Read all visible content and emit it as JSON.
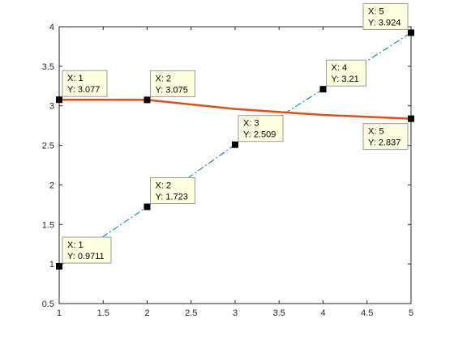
{
  "chart_data": {
    "type": "line",
    "title": "",
    "xlabel": "",
    "ylabel": "",
    "xlim": [
      1,
      5
    ],
    "ylim": [
      0.5,
      4
    ],
    "x_ticks": [
      1,
      1.5,
      2,
      2.5,
      3,
      3.5,
      4,
      4.5,
      5
    ],
    "y_ticks": [
      0.5,
      1,
      1.5,
      2,
      2.5,
      3,
      3.5,
      4
    ],
    "x_tick_labels": [
      "1",
      "1.5",
      "2",
      "2.5",
      "3",
      "3.5",
      "4",
      "4.5",
      "5"
    ],
    "y_tick_labels": [
      "0.5",
      "1",
      "1.5",
      "2",
      "2.5",
      "3",
      "3.5",
      "4"
    ],
    "grid": false,
    "box": true,
    "series": [
      {
        "style": "dash-dot",
        "color": "#0072BD",
        "x": [
          1,
          2,
          3,
          4,
          5
        ],
        "y": [
          0.9711,
          1.723,
          2.509,
          3.21,
          3.924
        ]
      },
      {
        "style": "solid",
        "color": "#D95319",
        "x": [
          1,
          2,
          3,
          4,
          5
        ],
        "y": [
          3.077,
          3.075,
          2.96,
          2.885,
          2.837
        ]
      }
    ],
    "data_markers": [
      {
        "x": 1,
        "y": 0.9711
      },
      {
        "x": 2,
        "y": 1.723
      },
      {
        "x": 3,
        "y": 2.509
      },
      {
        "x": 4,
        "y": 3.21
      },
      {
        "x": 5,
        "y": 3.924
      },
      {
        "x": 1,
        "y": 3.077
      },
      {
        "x": 2,
        "y": 3.075
      },
      {
        "x": 5,
        "y": 2.837
      }
    ],
    "datatips": [
      {
        "x": 1,
        "y": 3.077,
        "line1": "X: 1",
        "line2": "Y: 3.077",
        "placement": "above-right"
      },
      {
        "x": 2,
        "y": 3.075,
        "line1": "X: 2",
        "line2": "Y: 3.075",
        "placement": "above-right"
      },
      {
        "x": 3,
        "y": 2.509,
        "line1": "X: 3",
        "line2": "Y: 2.509",
        "placement": "above-right"
      },
      {
        "x": 4,
        "y": 3.21,
        "line1": "X: 4",
        "line2": "Y: 3.21",
        "placement": "above-right"
      },
      {
        "x": 5,
        "y": 3.924,
        "line1": "X: 5",
        "line2": "Y: 3.924",
        "placement": "above-left"
      },
      {
        "x": 5,
        "y": 2.837,
        "line1": "X: 5",
        "line2": "Y: 2.837",
        "placement": "below-left"
      },
      {
        "x": 2,
        "y": 1.723,
        "line1": "X: 2",
        "line2": "Y: 1.723",
        "placement": "above-right"
      },
      {
        "x": 1,
        "y": 0.9711,
        "line1": "X: 1",
        "line2": "Y: 0.9711",
        "placement": "above-right"
      }
    ],
    "colors": {
      "axis": "#262626",
      "datatip_bg": "#FFFFE1",
      "datatip_border": "#9A9A9A",
      "marker": "#000000"
    }
  }
}
